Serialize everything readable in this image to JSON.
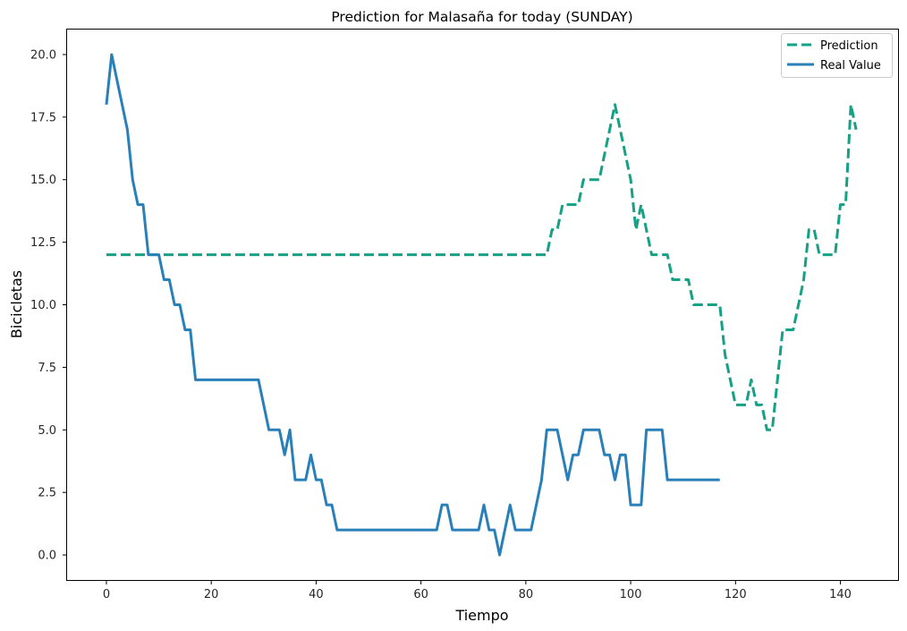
{
  "chart_data": {
    "type": "line",
    "title": "Prediction for Malasaña for today (SUNDAY)",
    "xlabel": "Tiempo",
    "ylabel": "Bicicletas",
    "xlim": [
      -7.5,
      151
    ],
    "ylim": [
      -1.0,
      21.0
    ],
    "xticks": [
      0,
      20,
      40,
      60,
      80,
      100,
      120,
      140
    ],
    "yticks": [
      0.0,
      2.5,
      5.0,
      7.5,
      10.0,
      12.5,
      15.0,
      17.5,
      20.0
    ],
    "xtick_labels": [
      "0",
      "20",
      "40",
      "60",
      "80",
      "100",
      "120",
      "140"
    ],
    "ytick_labels": [
      "0.0",
      "2.5",
      "5.0",
      "7.5",
      "10.0",
      "12.5",
      "15.0",
      "17.5",
      "20.0"
    ],
    "grid": false,
    "legend_position": "top-right",
    "series": [
      {
        "name": "Prediction",
        "color": "#16a085",
        "style": "dashed",
        "points": [
          [
            0,
            12
          ],
          [
            84,
            12
          ],
          [
            85,
            13
          ],
          [
            86,
            13
          ],
          [
            87,
            14
          ],
          [
            90,
            14
          ],
          [
            91,
            15
          ],
          [
            94,
            15
          ],
          [
            95,
            16
          ],
          [
            96,
            17
          ],
          [
            97,
            18
          ],
          [
            98,
            17
          ],
          [
            99,
            16
          ],
          [
            100,
            15
          ],
          [
            101,
            13
          ],
          [
            102,
            14
          ],
          [
            103,
            13
          ],
          [
            104,
            12
          ],
          [
            107,
            12
          ],
          [
            108,
            11
          ],
          [
            111,
            11
          ],
          [
            112,
            10
          ],
          [
            117,
            10
          ],
          [
            118,
            8
          ],
          [
            119,
            7
          ],
          [
            120,
            6
          ],
          [
            121,
            6
          ],
          [
            122,
            6
          ],
          [
            123,
            7
          ],
          [
            124,
            6
          ],
          [
            125,
            6
          ],
          [
            126,
            5
          ],
          [
            127,
            5
          ],
          [
            128,
            7
          ],
          [
            129,
            9
          ],
          [
            131,
            9
          ],
          [
            132,
            10
          ],
          [
            133,
            11
          ],
          [
            134,
            13
          ],
          [
            135,
            13
          ],
          [
            136,
            12
          ],
          [
            139,
            12
          ],
          [
            140,
            14
          ],
          [
            141,
            14
          ],
          [
            142,
            18
          ],
          [
            143,
            17
          ]
        ]
      },
      {
        "name": "Real Value",
        "color": "#2980b9",
        "style": "solid",
        "points": [
          [
            0,
            18
          ],
          [
            1,
            20
          ],
          [
            2,
            19
          ],
          [
            3,
            18
          ],
          [
            4,
            17
          ],
          [
            5,
            15
          ],
          [
            6,
            14
          ],
          [
            7,
            14
          ],
          [
            8,
            12
          ],
          [
            10,
            12
          ],
          [
            11,
            11
          ],
          [
            12,
            11
          ],
          [
            13,
            10
          ],
          [
            14,
            10
          ],
          [
            15,
            9
          ],
          [
            16,
            9
          ],
          [
            17,
            7
          ],
          [
            29,
            7
          ],
          [
            30,
            6
          ],
          [
            31,
            5
          ],
          [
            33,
            5
          ],
          [
            34,
            4
          ],
          [
            35,
            5
          ],
          [
            36,
            3
          ],
          [
            38,
            3
          ],
          [
            39,
            4
          ],
          [
            40,
            3
          ],
          [
            41,
            3
          ],
          [
            42,
            2
          ],
          [
            43,
            2
          ],
          [
            44,
            1
          ],
          [
            63,
            1
          ],
          [
            64,
            2
          ],
          [
            65,
            2
          ],
          [
            66,
            1
          ],
          [
            71,
            1
          ],
          [
            72,
            2
          ],
          [
            73,
            1
          ],
          [
            74,
            1
          ],
          [
            75,
            0
          ],
          [
            76,
            1
          ],
          [
            77,
            2
          ],
          [
            78,
            1
          ],
          [
            81,
            1
          ],
          [
            82,
            2
          ],
          [
            83,
            3
          ],
          [
            84,
            5
          ],
          [
            86,
            5
          ],
          [
            87,
            4
          ],
          [
            88,
            3
          ],
          [
            89,
            4
          ],
          [
            90,
            4
          ],
          [
            91,
            5
          ],
          [
            94,
            5
          ],
          [
            95,
            4
          ],
          [
            96,
            4
          ],
          [
            97,
            3
          ],
          [
            98,
            4
          ],
          [
            99,
            4
          ],
          [
            100,
            2
          ],
          [
            102,
            2
          ],
          [
            103,
            5
          ],
          [
            106,
            5
          ],
          [
            107,
            3
          ],
          [
            117,
            3
          ]
        ]
      }
    ]
  }
}
